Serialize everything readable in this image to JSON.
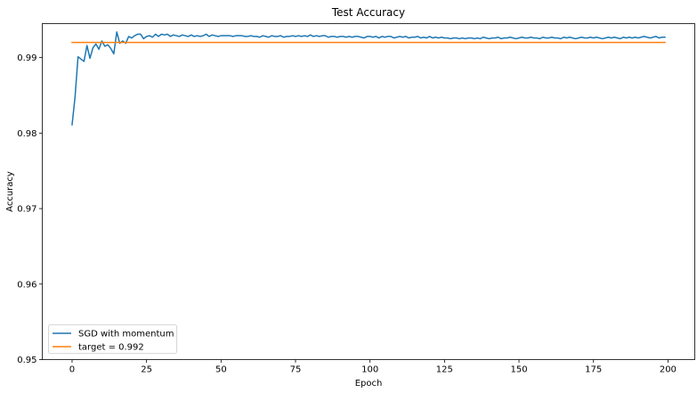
{
  "chart_data": {
    "type": "line",
    "title": "Test Accuracy",
    "xlabel": "Epoch",
    "ylabel": "Accuracy",
    "xlim": [
      -10,
      209
    ],
    "ylim": [
      0.95,
      0.9945
    ],
    "xticks": [
      0,
      25,
      50,
      75,
      100,
      125,
      150,
      175,
      200
    ],
    "yticks": [
      0.95,
      0.96,
      0.97,
      0.98,
      0.99
    ],
    "ytick_labels": [
      "0.95",
      "0.96",
      "0.97",
      "0.98",
      "0.99"
    ],
    "grid": false,
    "legend_position": "lower-left",
    "series": [
      {
        "name": "SGD with momentum",
        "color": "#1f77b4",
        "x": [
          0,
          1,
          2,
          3,
          4,
          5,
          6,
          7,
          8,
          9,
          10,
          11,
          12,
          13,
          14,
          15,
          16,
          17,
          18,
          19,
          20,
          21,
          22,
          23,
          24,
          25,
          26,
          27,
          28,
          29,
          30,
          31,
          32,
          33,
          34,
          35,
          36,
          37,
          38,
          39,
          40,
          41,
          42,
          43,
          44,
          45,
          46,
          47,
          48,
          49,
          50,
          51,
          52,
          53,
          54,
          55,
          56,
          57,
          58,
          59,
          60,
          61,
          62,
          63,
          64,
          65,
          66,
          67,
          68,
          69,
          70,
          71,
          72,
          73,
          74,
          75,
          76,
          77,
          78,
          79,
          80,
          81,
          82,
          83,
          84,
          85,
          86,
          87,
          88,
          89,
          90,
          91,
          92,
          93,
          94,
          95,
          96,
          97,
          98,
          99,
          100,
          101,
          102,
          103,
          104,
          105,
          106,
          107,
          108,
          109,
          110,
          111,
          112,
          113,
          114,
          115,
          116,
          117,
          118,
          119,
          120,
          121,
          122,
          123,
          124,
          125,
          126,
          127,
          128,
          129,
          130,
          131,
          132,
          133,
          134,
          135,
          136,
          137,
          138,
          139,
          140,
          141,
          142,
          143,
          144,
          145,
          146,
          147,
          148,
          149,
          150,
          151,
          152,
          153,
          154,
          155,
          156,
          157,
          158,
          159,
          160,
          161,
          162,
          163,
          164,
          165,
          166,
          167,
          168,
          169,
          170,
          171,
          172,
          173,
          174,
          175,
          176,
          177,
          178,
          179,
          180,
          181,
          182,
          183,
          184,
          185,
          186,
          187,
          188,
          189,
          190,
          191,
          192,
          193,
          194,
          195,
          196,
          197,
          198,
          199
        ],
        "y": [
          0.9811,
          0.9848,
          0.9901,
          0.9898,
          0.9895,
          0.9916,
          0.9899,
          0.9913,
          0.9918,
          0.9911,
          0.9922,
          0.9915,
          0.9917,
          0.9912,
          0.9905,
          0.9934,
          0.9919,
          0.9922,
          0.9919,
          0.9928,
          0.9926,
          0.9929,
          0.9931,
          0.9931,
          0.9925,
          0.9928,
          0.9929,
          0.9927,
          0.9931,
          0.9928,
          0.9931,
          0.993,
          0.9931,
          0.9928,
          0.993,
          0.9929,
          0.9928,
          0.993,
          0.9929,
          0.9928,
          0.993,
          0.9928,
          0.9929,
          0.9928,
          0.9929,
          0.9931,
          0.9928,
          0.993,
          0.9929,
          0.9928,
          0.9929,
          0.9929,
          0.9929,
          0.9929,
          0.9928,
          0.9929,
          0.9929,
          0.9929,
          0.9928,
          0.9928,
          0.9929,
          0.9928,
          0.9928,
          0.9927,
          0.9929,
          0.9928,
          0.9927,
          0.9929,
          0.9928,
          0.9928,
          0.9929,
          0.9927,
          0.9928,
          0.9928,
          0.9929,
          0.9928,
          0.9929,
          0.9928,
          0.9929,
          0.9928,
          0.993,
          0.9928,
          0.9929,
          0.9928,
          0.9929,
          0.9929,
          0.9927,
          0.9928,
          0.9928,
          0.9927,
          0.9928,
          0.9928,
          0.9927,
          0.9928,
          0.9927,
          0.9928,
          0.9928,
          0.9927,
          0.9926,
          0.9928,
          0.9928,
          0.9927,
          0.9928,
          0.9926,
          0.9928,
          0.9927,
          0.9928,
          0.9928,
          0.9926,
          0.9927,
          0.9928,
          0.9927,
          0.9928,
          0.9926,
          0.9927,
          0.9927,
          0.9928,
          0.9926,
          0.9927,
          0.9926,
          0.9928,
          0.9926,
          0.9927,
          0.9926,
          0.9927,
          0.9926,
          0.9926,
          0.9925,
          0.9926,
          0.9926,
          0.9925,
          0.9926,
          0.9925,
          0.9926,
          0.9926,
          0.9925,
          0.9926,
          0.9925,
          0.9927,
          0.9926,
          0.9925,
          0.9926,
          0.9926,
          0.9927,
          0.9925,
          0.9926,
          0.9926,
          0.9927,
          0.9926,
          0.9925,
          0.9926,
          0.9927,
          0.9926,
          0.9926,
          0.9927,
          0.9926,
          0.9926,
          0.9925,
          0.9927,
          0.9926,
          0.9926,
          0.9927,
          0.9926,
          0.9926,
          0.9925,
          0.9927,
          0.9926,
          0.9927,
          0.9926,
          0.9925,
          0.9926,
          0.9927,
          0.9926,
          0.9926,
          0.9927,
          0.9926,
          0.9927,
          0.9926,
          0.9925,
          0.9926,
          0.9927,
          0.9926,
          0.9927,
          0.9926,
          0.9925,
          0.9927,
          0.9926,
          0.9927,
          0.9926,
          0.9927,
          0.9926,
          0.9927,
          0.9928,
          0.9927,
          0.9926,
          0.9927,
          0.9928,
          0.9926,
          0.9927,
          0.9927
        ]
      },
      {
        "name": "target = 0.992",
        "color": "#ff7f0e",
        "x": [
          0,
          199
        ],
        "y": [
          0.992,
          0.992
        ]
      }
    ]
  }
}
